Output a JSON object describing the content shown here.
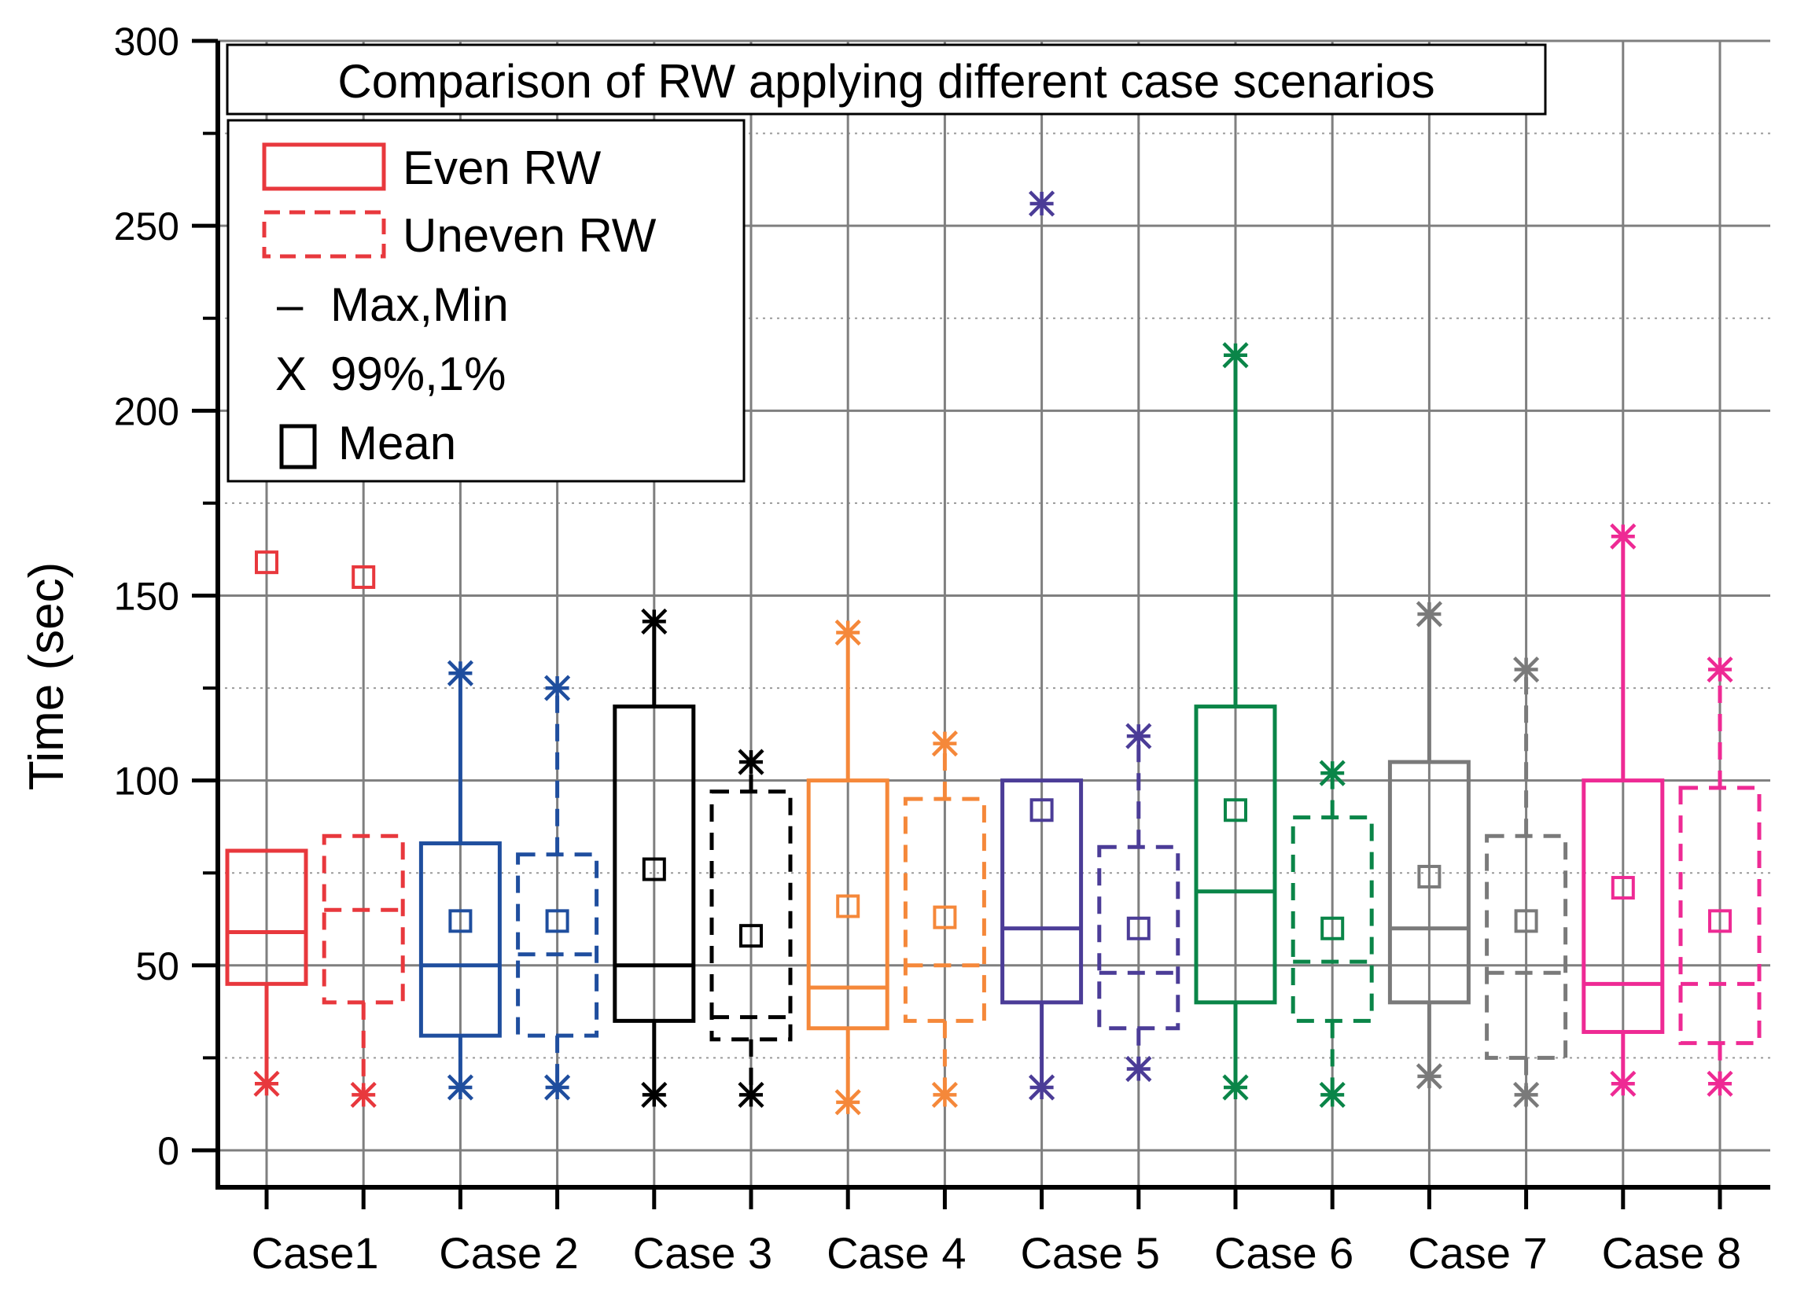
{
  "chart_data": {
    "type": "box",
    "title": "Comparison of RW applying different case scenarios",
    "xlabel": "",
    "ylabel": "Time (sec)",
    "ylim": [
      -10,
      300
    ],
    "yticks": [
      0,
      50,
      100,
      150,
      200,
      250,
      300
    ],
    "categories": [
      "Case1",
      "Case 2",
      "Case 3",
      "Case 4",
      "Case 5",
      "Case 6",
      "Case 7",
      "Case 8"
    ],
    "grid": true,
    "legend": {
      "position": "top-left",
      "items": [
        {
          "label": "Even RW",
          "kind": "box-solid",
          "color": "#e8383d"
        },
        {
          "label": "Uneven RW",
          "kind": "box-dashed",
          "color": "#e8383d"
        },
        {
          "label": "Max,Min",
          "kind": "dash-symbol",
          "symbol": "–"
        },
        {
          "label": "99%,1%",
          "kind": "x-symbol",
          "symbol": "X"
        },
        {
          "label": "Mean",
          "kind": "square-symbol"
        }
      ]
    },
    "boxes": [
      {
        "case": "Case1",
        "series": "Even RW",
        "color": "#e8383d",
        "dashed": false,
        "q1": 45,
        "median": 59,
        "q3": 81,
        "whisker_low": 18,
        "whisker_high": 81,
        "p1": 18,
        "p99": null,
        "mean": 159
      },
      {
        "case": "Case1",
        "series": "Uneven RW",
        "color": "#e8383d",
        "dashed": true,
        "q1": 40,
        "median": 65,
        "q3": 85,
        "whisker_low": 15,
        "whisker_high": 85,
        "p1": 15,
        "p99": null,
        "mean": 155
      },
      {
        "case": "Case 2",
        "series": "Even RW",
        "color": "#1f4e9e",
        "dashed": false,
        "q1": 31,
        "median": 50,
        "q3": 83,
        "whisker_low": 17,
        "whisker_high": 129,
        "p1": 17,
        "p99": 129,
        "mean": 62
      },
      {
        "case": "Case 2",
        "series": "Uneven RW",
        "color": "#1f4e9e",
        "dashed": true,
        "q1": 31,
        "median": 53,
        "q3": 80,
        "whisker_low": 17,
        "whisker_high": 125,
        "p1": 17,
        "p99": 125,
        "mean": 62
      },
      {
        "case": "Case 3",
        "series": "Even RW",
        "color": "#000000",
        "dashed": false,
        "q1": 35,
        "median": 50,
        "q3": 120,
        "whisker_low": 15,
        "whisker_high": 143,
        "p1": 15,
        "p99": 143,
        "mean": 76
      },
      {
        "case": "Case 3",
        "series": "Uneven RW",
        "color": "#000000",
        "dashed": true,
        "q1": 30,
        "median": 36,
        "q3": 97,
        "whisker_low": 15,
        "whisker_high": 105,
        "p1": 15,
        "p99": 105,
        "mean": 58
      },
      {
        "case": "Case 4",
        "series": "Even RW",
        "color": "#f5883a",
        "dashed": false,
        "q1": 33,
        "median": 44,
        "q3": 100,
        "whisker_low": 13,
        "whisker_high": 140,
        "p1": 13,
        "p99": 140,
        "mean": 66
      },
      {
        "case": "Case 4",
        "series": "Uneven RW",
        "color": "#f5883a",
        "dashed": true,
        "q1": 35,
        "median": 50,
        "q3": 95,
        "whisker_low": 15,
        "whisker_high": 110,
        "p1": 15,
        "p99": 110,
        "mean": 63
      },
      {
        "case": "Case 5",
        "series": "Even RW",
        "color": "#4b3c97",
        "dashed": false,
        "q1": 40,
        "median": 60,
        "q3": 100,
        "whisker_low": 17,
        "whisker_high": 100,
        "p1": 17,
        "p99": 256,
        "mean": 92
      },
      {
        "case": "Case 5",
        "series": "Uneven RW",
        "color": "#4b3c97",
        "dashed": true,
        "q1": 33,
        "median": 48,
        "q3": 82,
        "whisker_low": 22,
        "whisker_high": 112,
        "p1": 22,
        "p99": 112,
        "mean": 60
      },
      {
        "case": "Case 6",
        "series": "Even RW",
        "color": "#0a8548",
        "dashed": false,
        "q1": 40,
        "median": 70,
        "q3": 120,
        "whisker_low": 17,
        "whisker_high": 215,
        "p1": 17,
        "p99": 215,
        "mean": 92
      },
      {
        "case": "Case 6",
        "series": "Uneven RW",
        "color": "#0a8548",
        "dashed": true,
        "q1": 35,
        "median": 51,
        "q3": 90,
        "whisker_low": 15,
        "whisker_high": 102,
        "p1": 15,
        "p99": 102,
        "mean": 60
      },
      {
        "case": "Case 7",
        "series": "Even RW",
        "color": "#7a7a7a",
        "dashed": false,
        "q1": 40,
        "median": 60,
        "q3": 105,
        "whisker_low": 20,
        "whisker_high": 145,
        "p1": 20,
        "p99": 145,
        "mean": 74
      },
      {
        "case": "Case 7",
        "series": "Uneven RW",
        "color": "#7a7a7a",
        "dashed": true,
        "q1": 25,
        "median": 48,
        "q3": 85,
        "whisker_low": 15,
        "whisker_high": 130,
        "p1": 15,
        "p99": 130,
        "mean": 62
      },
      {
        "case": "Case 8",
        "series": "Even RW",
        "color": "#ee2a94",
        "dashed": false,
        "q1": 32,
        "median": 45,
        "q3": 100,
        "whisker_low": 18,
        "whisker_high": 166,
        "p1": 18,
        "p99": 166,
        "mean": 71
      },
      {
        "case": "Case 8",
        "series": "Uneven RW",
        "color": "#ee2a94",
        "dashed": true,
        "q1": 29,
        "median": 45,
        "q3": 98,
        "whisker_low": 18,
        "whisker_high": 130,
        "p1": 18,
        "p99": 130,
        "mean": 62
      }
    ]
  }
}
